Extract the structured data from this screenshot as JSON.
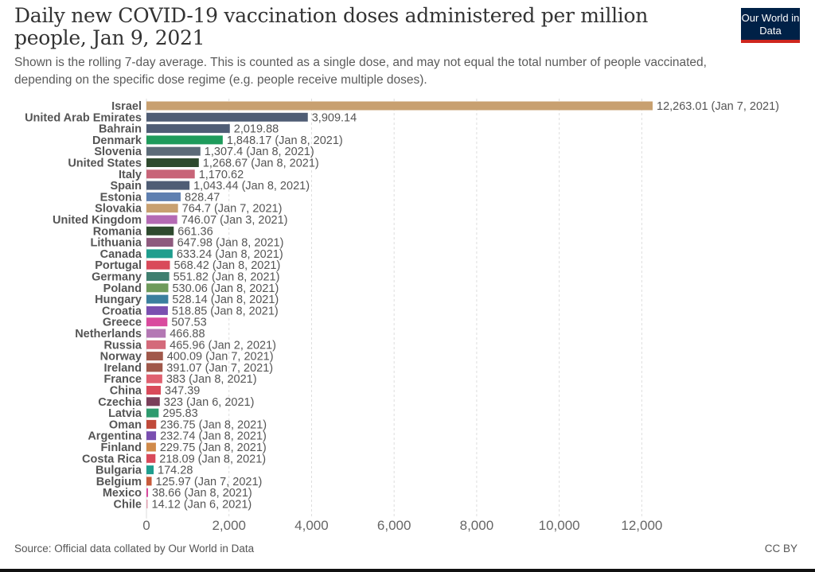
{
  "header": {
    "title": "Daily new COVID-19 vaccination doses administered per million people, Jan 9, 2021",
    "subtitle": "Shown is the rolling 7-day average. This is counted as a single dose, and may not equal the total number of people vaccinated, depending on the specific dose regime (e.g. people receive multiple doses).",
    "logo_text": "Our World in Data",
    "logo_color": "#002147",
    "logo_accent": "#ce261e"
  },
  "footer": {
    "source": "Source: Official data collated by Our World in Data",
    "license": "CC BY"
  },
  "chart_data": {
    "type": "bar",
    "orientation": "horizontal",
    "xlim": [
      0,
      12263.01
    ],
    "xticks": [
      "0",
      "2,000",
      "4,000",
      "6,000",
      "8,000",
      "10,000",
      "12,000"
    ],
    "xtick_values": [
      0,
      2000,
      4000,
      6000,
      8000,
      10000,
      12000
    ],
    "grid": "vertical-dashed",
    "categories": [
      "Israel",
      "United Arab Emirates",
      "Bahrain",
      "Denmark",
      "Slovenia",
      "United States",
      "Italy",
      "Spain",
      "Estonia",
      "Slovakia",
      "United Kingdom",
      "Romania",
      "Lithuania",
      "Canada",
      "Portugal",
      "Germany",
      "Poland",
      "Hungary",
      "Croatia",
      "Greece",
      "Netherlands",
      "Russia",
      "Norway",
      "Ireland",
      "France",
      "China",
      "Czechia",
      "Latvia",
      "Oman",
      "Argentina",
      "Finland",
      "Costa Rica",
      "Bulgaria",
      "Belgium",
      "Mexico",
      "Chile"
    ],
    "values": [
      12263.01,
      3909.14,
      2019.88,
      1848.17,
      1307.4,
      1268.67,
      1170.62,
      1043.44,
      828.47,
      764.7,
      746.07,
      661.36,
      647.98,
      633.24,
      568.42,
      551.82,
      530.06,
      528.14,
      518.85,
      507.53,
      466.88,
      465.96,
      400.09,
      391.07,
      383,
      347.39,
      323,
      295.83,
      236.75,
      232.74,
      229.75,
      218.09,
      174.28,
      125.97,
      38.66,
      14.12
    ],
    "value_labels": [
      "12,263.01 (Jan 7, 2021)",
      "3,909.14",
      "2,019.88",
      "1,848.17 (Jan 8, 2021)",
      "1,307.4 (Jan 8, 2021)",
      "1,268.67 (Jan 8, 2021)",
      "1,170.62",
      "1,043.44 (Jan 8, 2021)",
      "828.47",
      "764.7 (Jan 7, 2021)",
      "746.07 (Jan 3, 2021)",
      "661.36",
      "647.98 (Jan 8, 2021)",
      "633.24 (Jan 8, 2021)",
      "568.42 (Jan 8, 2021)",
      "551.82 (Jan 8, 2021)",
      "530.06 (Jan 8, 2021)",
      "528.14 (Jan 8, 2021)",
      "518.85 (Jan 8, 2021)",
      "507.53",
      "466.88",
      "465.96 (Jan 2, 2021)",
      "400.09 (Jan 7, 2021)",
      "391.07 (Jan 7, 2021)",
      "383 (Jan 8, 2021)",
      "347.39",
      "323 (Jan 6, 2021)",
      "295.83",
      "236.75 (Jan 8, 2021)",
      "232.74 (Jan 8, 2021)",
      "229.75 (Jan 8, 2021)",
      "218.09 (Jan 8, 2021)",
      "174.28",
      "125.97 (Jan 7, 2021)",
      "38.66 (Jan 8, 2021)",
      "14.12 (Jan 6, 2021)"
    ],
    "colors": [
      "#c8a070",
      "#4f5d75",
      "#4f5d75",
      "#1e9b5b",
      "#5c6b78",
      "#2e4a2e",
      "#c86478",
      "#4f5d75",
      "#5e7fb0",
      "#c8a070",
      "#b46ab4",
      "#2e4a2e",
      "#8e5a7e",
      "#1f9e8e",
      "#d94a5a",
      "#3f7f6f",
      "#6e9b5b",
      "#3a7f9e",
      "#7a4fb0",
      "#d94a9e",
      "#b478b4",
      "#d46a7a",
      "#a0584a",
      "#a0584a",
      "#e06070",
      "#d94a5a",
      "#7a3f5a",
      "#2e9b6e",
      "#c04a3a",
      "#7a4fb0",
      "#d08a4a",
      "#d94a5a",
      "#1f9e8e",
      "#c85a3a",
      "#d94a9e",
      "#e0a0b0"
    ]
  }
}
